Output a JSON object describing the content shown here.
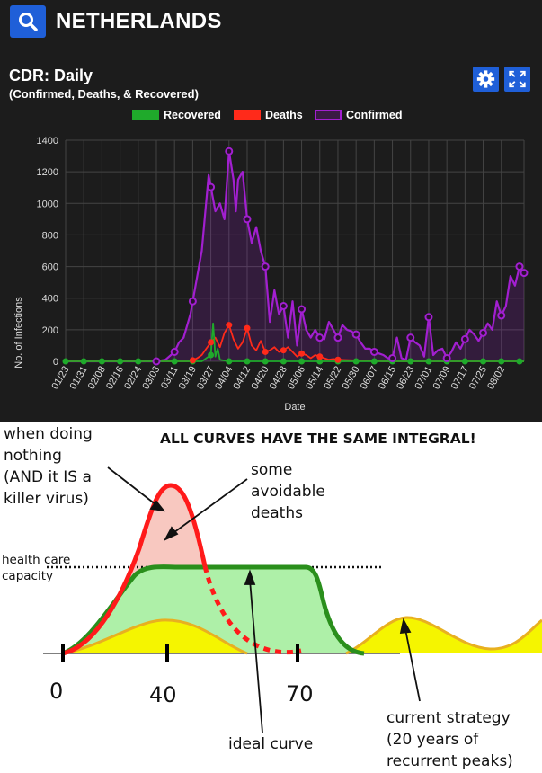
{
  "header": {
    "country": "NETHERLANDS",
    "search_icon": "search-icon"
  },
  "chart_header": {
    "title": "CDR: Daily",
    "subtitle": "(Confirmed, Deaths, & Recovered)",
    "settings_icon": "gear-icon",
    "fullscreen_icon": "expand-icon"
  },
  "legend": [
    {
      "label": "Recovered",
      "color": "#1faa2b"
    },
    {
      "label": "Deaths",
      "color": "#ff2a1a"
    },
    {
      "label": "Confirmed",
      "color": "#a21fd0"
    }
  ],
  "chart_data": [
    {
      "type": "line",
      "xlabel": "Date",
      "ylabel": "No. of Infections",
      "ylim": [
        0,
        1400
      ],
      "yticks": [
        0,
        200,
        400,
        600,
        800,
        1000,
        1200,
        1400
      ],
      "xticks": [
        "01/23",
        "01/31",
        "02/08",
        "02/16",
        "02/24",
        "03/03",
        "03/11",
        "03/19",
        "03/27",
        "04/04",
        "04/12",
        "04/20",
        "04/28",
        "05/06",
        "05/14",
        "05/22",
        "05/30",
        "06/07",
        "06/15",
        "06/23",
        "07/01",
        "07/09",
        "07/17",
        "07/25",
        "08/02"
      ],
      "grid": true,
      "legend_position": "top",
      "series": [
        {
          "name": "Confirmed",
          "color": "#a21fd0",
          "x": [
            0,
            40,
            44,
            48,
            50,
            52,
            55,
            60,
            63,
            66,
            68,
            70,
            72,
            74,
            75,
            76,
            78,
            80,
            82,
            84,
            86,
            88,
            90,
            92,
            94,
            96,
            98,
            100,
            102,
            104,
            106,
            108,
            110,
            112,
            114,
            116,
            118,
            120,
            122,
            124,
            126,
            128,
            130,
            132,
            134,
            136,
            138,
            140,
            142,
            144,
            146,
            148,
            150,
            152,
            154,
            156,
            158,
            160,
            162,
            164,
            166,
            168,
            170,
            172,
            174,
            176,
            178,
            180,
            182,
            184,
            186,
            188,
            190,
            192,
            194,
            196,
            198,
            200,
            202
          ],
          "y": [
            0,
            0,
            10,
            60,
            120,
            150,
            300,
            700,
            1180,
            950,
            1000,
            900,
            1330,
            1150,
            950,
            1150,
            1200,
            900,
            750,
            850,
            700,
            600,
            250,
            450,
            300,
            350,
            150,
            380,
            100,
            330,
            200,
            150,
            200,
            150,
            140,
            250,
            200,
            150,
            230,
            200,
            190,
            170,
            120,
            80,
            80,
            60,
            50,
            40,
            20,
            20,
            150,
            20,
            10,
            150,
            120,
            100,
            30,
            280,
            40,
            70,
            80,
            20,
            60,
            120,
            80,
            140,
            200,
            170,
            130,
            180,
            240,
            200,
            380,
            290,
            350,
            540,
            480,
            600,
            560
          ]
        },
        {
          "name": "Deaths",
          "color": "#ff2a1a",
          "x": [
            0,
            55,
            58,
            60,
            62,
            64,
            66,
            68,
            70,
            72,
            74,
            76,
            78,
            80,
            82,
            84,
            86,
            88,
            90,
            92,
            94,
            96,
            98,
            100,
            102,
            104,
            106,
            108,
            110,
            112,
            114,
            116,
            118,
            120,
            140,
            202
          ],
          "y": [
            0,
            0,
            20,
            40,
            80,
            120,
            150,
            90,
            180,
            230,
            140,
            80,
            120,
            210,
            100,
            70,
            130,
            60,
            70,
            90,
            60,
            70,
            90,
            60,
            30,
            50,
            40,
            20,
            40,
            30,
            20,
            10,
            15,
            10,
            0,
            0
          ]
        },
        {
          "name": "Recovered",
          "color": "#1faa2b",
          "x": [
            0,
            60,
            62,
            64,
            65,
            66,
            67,
            68,
            70,
            72,
            202
          ],
          "y": [
            0,
            0,
            20,
            40,
            240,
            30,
            80,
            10,
            5,
            0,
            0
          ]
        }
      ]
    },
    {
      "type": "line",
      "title": "ALL CURVES HAVE THE SAME INTEGRAL!",
      "xticks": [
        "0",
        "40",
        "70"
      ],
      "annotations": [
        "when doing nothing (AND it IS a killer virus)",
        "some avoidable deaths",
        "health care capacity",
        "ideal curve",
        "current strategy (20 years of recurrent peaks)"
      ],
      "series": [
        {
          "x": [
            0,
            10,
            20,
            30,
            40,
            50,
            60,
            70
          ],
          "y": [
            0,
            0.2,
            0.55,
            0.9,
            1.0,
            0.7,
            0.3,
            0.02
          ],
          "color": "#ff1a1a"
        },
        {
          "x": [
            0,
            10,
            20,
            30,
            40,
            50,
            60,
            70,
            80
          ],
          "y": [
            0,
            0.15,
            0.4,
            0.52,
            0.55,
            0.55,
            0.55,
            0.52,
            0
          ],
          "color": "#2a8f1c"
        },
        {
          "x": [
            0,
            15,
            30,
            40,
            50,
            60,
            70,
            80,
            100,
            110
          ],
          "y": [
            0,
            0.1,
            0.22,
            0.25,
            0.2,
            0.08,
            0.02,
            0.02,
            0.22,
            0.02
          ],
          "color": "#e8b020"
        }
      ]
    }
  ],
  "meme": {
    "headline": "ALL CURVES HAVE THE SAME INTEGRAL!",
    "nothing_1": "when doing",
    "nothing_2": "nothing",
    "nothing_3": "(AND it IS a",
    "nothing_4": "killer virus)",
    "avoid_1": "some",
    "avoid_2": "avoidable",
    "avoid_3": "deaths",
    "capacity_1": "health care",
    "capacity_2": "capacity",
    "tick_0": "0",
    "tick_40": "40",
    "tick_70": "70",
    "ideal": "ideal curve",
    "current_1": "current strategy",
    "current_2": "(20 years of",
    "current_3": "recurrent peaks)"
  }
}
